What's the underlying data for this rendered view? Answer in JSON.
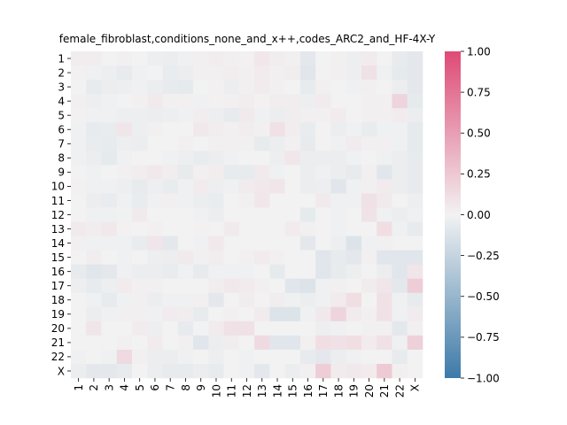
{
  "chart_data": {
    "type": "heatmap",
    "title": "female_fibroblast,conditions_none_and_x++,codes_ARC2_and_HF-4X-Y",
    "xlabel": "",
    "ylabel": "",
    "x_categories": [
      "1",
      "2",
      "3",
      "4",
      "5",
      "6",
      "7",
      "8",
      "9",
      "10",
      "11",
      "12",
      "13",
      "14",
      "15",
      "16",
      "17",
      "18",
      "19",
      "20",
      "21",
      "22",
      "X"
    ],
    "y_categories": [
      "1",
      "2",
      "3",
      "4",
      "5",
      "6",
      "7",
      "8",
      "9",
      "10",
      "11",
      "12",
      "13",
      "14",
      "15",
      "16",
      "17",
      "18",
      "19",
      "20",
      "21",
      "22",
      "X"
    ],
    "colorbar": {
      "vmin": -1.0,
      "vmax": 1.0,
      "ticks": [
        "1.00",
        "0.75",
        "0.50",
        "0.25",
        "0.00",
        "−0.25",
        "−0.50",
        "−0.75",
        "−1.00"
      ],
      "tick_values": [
        1.0,
        0.75,
        0.5,
        0.25,
        0.0,
        -0.25,
        -0.5,
        -0.75,
        -1.0
      ],
      "colors": {
        "low": "#3d7aa8",
        "mid": "#f2f2f2",
        "high": "#de4a76"
      }
    },
    "values": [
      [
        0.03,
        0.03,
        0.0,
        0.02,
        0.0,
        -0.03,
        -0.04,
        -0.02,
        0.02,
        0.03,
        0.02,
        0.01,
        0.07,
        0.03,
        0.02,
        -0.08,
        0.0,
        0.02,
        -0.03,
        0.04,
        0.0,
        -0.06,
        -0.08
      ],
      [
        0.01,
        -0.02,
        -0.03,
        -0.06,
        -0.02,
        0.0,
        -0.05,
        -0.04,
        0.02,
        0.02,
        0.03,
        0.02,
        0.04,
        0.02,
        0.03,
        -0.1,
        0.0,
        0.02,
        -0.03,
        0.1,
        -0.02,
        -0.07,
        -0.08
      ],
      [
        0.0,
        -0.06,
        -0.04,
        -0.03,
        -0.02,
        -0.04,
        -0.06,
        -0.07,
        0.0,
        0.01,
        -0.04,
        0.02,
        0.04,
        0.02,
        0.0,
        -0.06,
        0.02,
        0.0,
        -0.02,
        0.02,
        0.0,
        -0.04,
        -0.08
      ],
      [
        0.02,
        -0.03,
        -0.02,
        0.0,
        0.02,
        0.05,
        0.02,
        0.02,
        -0.02,
        0.01,
        0.02,
        0.03,
        0.01,
        0.03,
        0.03,
        -0.03,
        0.04,
        0.0,
        0.0,
        0.02,
        0.02,
        0.18,
        -0.07
      ],
      [
        0.01,
        -0.02,
        -0.02,
        -0.03,
        -0.03,
        -0.04,
        -0.03,
        -0.02,
        0.03,
        -0.03,
        -0.06,
        0.05,
        -0.02,
        -0.04,
        0.03,
        0.02,
        0.02,
        0.04,
        0.0,
        0.02,
        0.02,
        0.04,
        -0.04
      ],
      [
        -0.02,
        -0.06,
        -0.05,
        0.08,
        -0.03,
        0.02,
        0.0,
        0.0,
        0.06,
        0.03,
        0.02,
        0.03,
        0.02,
        0.1,
        0.03,
        -0.05,
        0.0,
        -0.04,
        -0.02,
        -0.05,
        -0.02,
        -0.02,
        -0.07
      ],
      [
        -0.02,
        -0.05,
        -0.06,
        -0.03,
        -0.04,
        0.0,
        0.0,
        0.02,
        0.0,
        0.02,
        0.02,
        0.02,
        -0.06,
        -0.04,
        0.02,
        -0.06,
        0.0,
        -0.02,
        0.04,
        0.02,
        0.02,
        -0.02,
        -0.07
      ],
      [
        -0.02,
        -0.04,
        -0.07,
        -0.02,
        0.0,
        0.0,
        -0.02,
        -0.03,
        -0.05,
        -0.04,
        -0.02,
        0.0,
        0.0,
        -0.03,
        0.07,
        -0.04,
        -0.04,
        -0.04,
        -0.02,
        0.0,
        -0.02,
        -0.04,
        -0.06
      ],
      [
        0.0,
        -0.02,
        0.0,
        0.02,
        0.03,
        0.06,
        0.03,
        -0.06,
        0.02,
        0.03,
        -0.06,
        -0.06,
        0.05,
        -0.02,
        0.0,
        -0.04,
        -0.02,
        -0.04,
        -0.06,
        0.02,
        -0.1,
        -0.04,
        -0.06
      ],
      [
        0.01,
        -0.02,
        -0.02,
        -0.03,
        -0.06,
        -0.03,
        -0.05,
        -0.02,
        0.04,
        -0.03,
        -0.02,
        0.04,
        0.06,
        0.08,
        0.0,
        -0.04,
        -0.03,
        -0.1,
        -0.02,
        0.02,
        0.04,
        -0.04,
        -0.06
      ],
      [
        0.0,
        -0.04,
        -0.05,
        -0.02,
        -0.05,
        -0.02,
        0.02,
        -0.02,
        -0.04,
        -0.05,
        0.0,
        0.02,
        0.07,
        0.0,
        0.0,
        0.0,
        0.05,
        -0.02,
        -0.02,
        0.1,
        0.05,
        0.0,
        -0.03
      ],
      [
        0.0,
        -0.02,
        -0.02,
        -0.01,
        0.05,
        0.0,
        0.0,
        0.0,
        -0.02,
        -0.04,
        0.0,
        0.0,
        0.0,
        0.0,
        0.0,
        -0.07,
        0.0,
        -0.02,
        0.0,
        0.09,
        -0.02,
        -0.04,
        -0.02
      ],
      [
        0.05,
        0.03,
        0.06,
        0.01,
        0.0,
        0.02,
        0.0,
        0.0,
        0.01,
        0.0,
        0.05,
        0.0,
        0.0,
        0.0,
        0.04,
        0.02,
        0.0,
        -0.02,
        0.0,
        0.0,
        0.12,
        -0.02,
        -0.06
      ],
      [
        0.02,
        -0.02,
        -0.02,
        -0.02,
        -0.05,
        0.08,
        -0.08,
        0.0,
        -0.02,
        0.06,
        0.0,
        0.0,
        0.0,
        0.0,
        0.0,
        -0.08,
        0.0,
        -0.03,
        -0.12,
        -0.02,
        0.02,
        0.0,
        0.0
      ],
      [
        0.0,
        0.03,
        0.0,
        -0.02,
        0.0,
        -0.03,
        -0.04,
        0.05,
        0.02,
        0.03,
        0.0,
        0.02,
        0.04,
        0.02,
        0.0,
        0.0,
        -0.1,
        -0.06,
        -0.08,
        0.02,
        -0.1,
        -0.1,
        -0.1
      ],
      [
        -0.06,
        -0.1,
        -0.08,
        -0.02,
        -0.04,
        -0.04,
        -0.05,
        -0.02,
        -0.06,
        -0.02,
        -0.02,
        -0.02,
        0.0,
        -0.07,
        0.0,
        0.0,
        -0.1,
        -0.06,
        -0.03,
        0.0,
        -0.04,
        -0.1,
        0.08
      ],
      [
        -0.03,
        -0.06,
        -0.03,
        0.04,
        0.02,
        0.02,
        0.0,
        0.0,
        0.0,
        0.03,
        0.06,
        0.04,
        0.02,
        0.0,
        -0.1,
        -0.12,
        -0.02,
        0.02,
        0.0,
        0.04,
        0.08,
        -0.08,
        0.22
      ],
      [
        0.0,
        -0.02,
        -0.06,
        -0.02,
        0.02,
        -0.04,
        -0.02,
        -0.02,
        0.02,
        -0.08,
        0.0,
        0.03,
        0.0,
        0.03,
        -0.02,
        -0.04,
        -0.02,
        0.04,
        0.12,
        0.0,
        0.1,
        -0.02,
        -0.06
      ],
      [
        0.0,
        -0.04,
        -0.02,
        0.02,
        0.02,
        -0.02,
        0.04,
        0.03,
        -0.06,
        0.0,
        0.02,
        0.0,
        0.04,
        -0.12,
        -0.12,
        -0.02,
        0.06,
        0.18,
        0.04,
        0.02,
        0.1,
        -0.02,
        0.04
      ],
      [
        0.0,
        0.08,
        0.0,
        0.0,
        0.04,
        -0.03,
        0.0,
        -0.06,
        0.0,
        0.04,
        0.1,
        0.1,
        0.0,
        0.0,
        0.0,
        0.0,
        -0.03,
        -0.02,
        0.0,
        0.02,
        0.02,
        -0.08,
        0.02
      ],
      [
        0.0,
        0.0,
        0.0,
        0.02,
        0.0,
        0.04,
        0.0,
        0.02,
        -0.1,
        -0.04,
        0.03,
        0.0,
        0.14,
        -0.1,
        -0.1,
        0.02,
        0.12,
        0.1,
        0.12,
        0.04,
        0.1,
        -0.02,
        0.2
      ],
      [
        -0.02,
        0.0,
        -0.02,
        0.14,
        0.02,
        -0.04,
        -0.04,
        -0.02,
        0.0,
        -0.03,
        0.0,
        -0.02,
        0.0,
        0.0,
        0.0,
        -0.06,
        -0.08,
        -0.04,
        -0.02,
        0.0,
        0.0,
        -0.06,
        0.0
      ],
      [
        -0.04,
        -0.08,
        -0.08,
        -0.06,
        0.0,
        -0.04,
        -0.06,
        -0.06,
        -0.04,
        -0.06,
        0.0,
        -0.02,
        -0.08,
        0.0,
        -0.04,
        0.02,
        0.22,
        0.04,
        0.06,
        0.04,
        0.24,
        0.02,
        0.0
      ]
    ]
  }
}
